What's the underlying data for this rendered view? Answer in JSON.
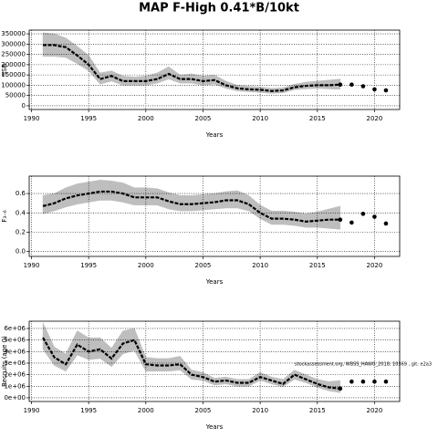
{
  "title": "MAP F-High 0.41*B/10kt",
  "chart_data": [
    {
      "type": "line",
      "ylabel": "SSB",
      "xlabel": "Years",
      "x": [
        1991,
        1992,
        1993,
        1994,
        1995,
        1996,
        1997,
        1998,
        1999,
        2000,
        2001,
        2002,
        2003,
        2004,
        2005,
        2006,
        2007,
        2008,
        2009,
        2010,
        2011,
        2012,
        2013,
        2014,
        2015,
        2016,
        2017
      ],
      "values": [
        295000,
        295000,
        285000,
        245000,
        200000,
        130000,
        145000,
        120000,
        120000,
        120000,
        130000,
        155000,
        130000,
        130000,
        120000,
        125000,
        100000,
        85000,
        80000,
        78000,
        72000,
        75000,
        90000,
        97000,
        100000,
        100000,
        103000
      ],
      "upper": [
        355000,
        350000,
        330000,
        290000,
        245000,
        160000,
        170000,
        145000,
        140000,
        145000,
        160000,
        190000,
        150000,
        155000,
        145000,
        150000,
        120000,
        100000,
        95000,
        92000,
        85000,
        88000,
        105000,
        115000,
        120000,
        125000,
        130000
      ],
      "lower": [
        240000,
        240000,
        235000,
        205000,
        170000,
        105000,
        120000,
        100000,
        100000,
        100000,
        110000,
        130000,
        110000,
        110000,
        100000,
        105000,
        85000,
        72000,
        68000,
        65000,
        60000,
        63000,
        78000,
        82000,
        85000,
        82000,
        80000
      ],
      "forecast_x": [
        2017,
        2018,
        2019,
        2020,
        2021
      ],
      "forecast_values": [
        103000,
        103000,
        95000,
        80000,
        75000
      ],
      "xlim": [
        1989.8,
        2022.2
      ],
      "xticks": [
        1990,
        1995,
        2000,
        2005,
        2010,
        2015,
        2020
      ],
      "ylim": [
        -18000,
        368000
      ],
      "yticks": [
        0,
        50000,
        100000,
        150000,
        200000,
        250000,
        300000,
        350000
      ],
      "grid": true,
      "band_color": "#bebebe",
      "color": "#000000"
    },
    {
      "type": "line",
      "ylabel": "F₃₋₆",
      "xlabel": "Years",
      "x": [
        1991,
        1992,
        1993,
        1994,
        1995,
        1996,
        1997,
        1998,
        1999,
        2000,
        2001,
        2002,
        2003,
        2004,
        2005,
        2006,
        2007,
        2008,
        2009,
        2010,
        2011,
        2012,
        2013,
        2014,
        2015,
        2016,
        2017
      ],
      "values": [
        0.47,
        0.5,
        0.55,
        0.58,
        0.6,
        0.62,
        0.62,
        0.6,
        0.56,
        0.56,
        0.56,
        0.52,
        0.49,
        0.49,
        0.5,
        0.51,
        0.53,
        0.53,
        0.49,
        0.4,
        0.34,
        0.34,
        0.33,
        0.31,
        0.32,
        0.33,
        0.33
      ],
      "upper": [
        0.58,
        0.6,
        0.66,
        0.7,
        0.72,
        0.74,
        0.73,
        0.71,
        0.66,
        0.66,
        0.65,
        0.61,
        0.58,
        0.58,
        0.59,
        0.6,
        0.62,
        0.63,
        0.58,
        0.48,
        0.42,
        0.42,
        0.41,
        0.39,
        0.41,
        0.44,
        0.47
      ],
      "lower": [
        0.39,
        0.42,
        0.46,
        0.49,
        0.51,
        0.53,
        0.53,
        0.51,
        0.48,
        0.48,
        0.48,
        0.44,
        0.42,
        0.42,
        0.43,
        0.44,
        0.45,
        0.45,
        0.42,
        0.34,
        0.28,
        0.28,
        0.27,
        0.25,
        0.25,
        0.24,
        0.23
      ],
      "forecast_x": [
        2017,
        2018,
        2019,
        2020,
        2021
      ],
      "forecast_values": [
        0.33,
        0.3,
        0.39,
        0.36,
        0.29
      ],
      "xlim": [
        1989.8,
        2022.2
      ],
      "xticks": [
        1990,
        1995,
        2000,
        2005,
        2010,
        2015,
        2020
      ],
      "ylim": [
        -0.05,
        0.78
      ],
      "yticks": [
        {
          "value": 0,
          "label": "0.0"
        },
        0.2,
        0.4,
        0.6
      ],
      "grid": true,
      "band_color": "#bebebe",
      "color": "#000000"
    },
    {
      "type": "line",
      "ylabel": "Recruits (age 0)",
      "xlabel": "Years",
      "annotation": "stockassessment.org, WBSS_HAWG_2018, 10369 , git: e2a3",
      "x": [
        1991,
        1992,
        1993,
        1994,
        1995,
        1996,
        1997,
        1998,
        1999,
        2000,
        2001,
        2002,
        2003,
        2004,
        2005,
        2006,
        2007,
        2008,
        2009,
        2010,
        2011,
        2012,
        2013,
        2014,
        2015,
        2016,
        2017
      ],
      "values": [
        5200000,
        3500000,
        2900000,
        4600000,
        4000000,
        4200000,
        3400000,
        4700000,
        5000000,
        2900000,
        2800000,
        2800000,
        2900000,
        2000000,
        1800000,
        1400000,
        1500000,
        1300000,
        1300000,
        1800000,
        1500000,
        1200000,
        2000000,
        1600000,
        1200000,
        900000,
        800000
      ],
      "upper": [
        6500000,
        4400000,
        3800000,
        5800000,
        5200000,
        5200000,
        4300000,
        5800000,
        6000000,
        3500000,
        3400000,
        3400000,
        3600000,
        2400000,
        2200000,
        1700000,
        1800000,
        1600000,
        1600000,
        2200000,
        1800000,
        1600000,
        2400000,
        2000000,
        1600000,
        1400000,
        1500000
      ],
      "lower": [
        4200000,
        2800000,
        2300000,
        3700000,
        3300000,
        3400000,
        2700000,
        3800000,
        4100000,
        2300000,
        2300000,
        2300000,
        2400000,
        1600000,
        1500000,
        1100000,
        1200000,
        1000000,
        1000000,
        1500000,
        1200000,
        950000,
        1600000,
        1300000,
        900000,
        600000,
        450000
      ],
      "forecast_x": [
        2017,
        2018,
        2019,
        2020,
        2021
      ],
      "forecast_values": [
        800000,
        1400000,
        1400000,
        1400000,
        1400000
      ],
      "xlim": [
        1989.8,
        2022.2
      ],
      "xticks": [
        1990,
        1995,
        2000,
        2005,
        2010,
        2015,
        2020
      ],
      "ylim": [
        -320000,
        6630000
      ],
      "yticks": [
        {
          "value": 0,
          "label": "0e+00"
        },
        {
          "value": 1000000,
          "label": "1e+06"
        },
        {
          "value": 2000000,
          "label": "2e+06"
        },
        {
          "value": 3000000,
          "label": "3e+06"
        },
        {
          "value": 4000000,
          "label": "4e+06"
        },
        {
          "value": 5000000,
          "label": "5e+06"
        },
        {
          "value": 6000000,
          "label": "6e+06"
        }
      ],
      "grid": true,
      "band_color": "#bebebe",
      "color": "#000000"
    }
  ]
}
